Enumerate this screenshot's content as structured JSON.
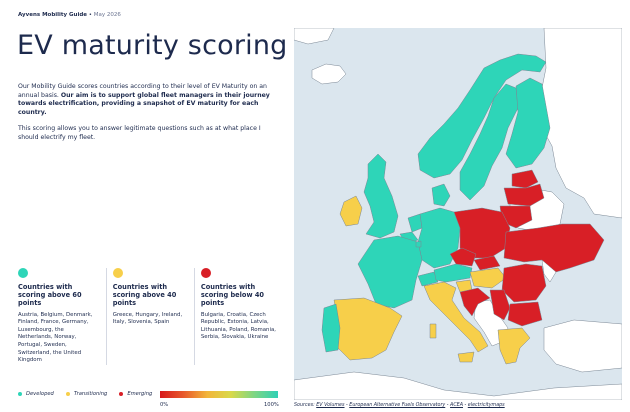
{
  "header": {
    "brand": "Ayvens Mobility Guide",
    "separator": " • ",
    "date": "May 2026"
  },
  "title": "EV maturity scoring",
  "intro": {
    "text_plain": "Our Mobility Guide scores countries according to their level of EV Maturity on an annual basis. ",
    "text_bold": "Our aim is to support global fleet managers in their journey towards electrification, providing a snapshot of EV maturity for each country.",
    "paragraph2": "This scoring allows you to answer legitimate questions such as at what place I should electrify my fleet."
  },
  "categories": [
    {
      "color": "#2ed5b8",
      "heading": "Countries with scoring above 60 points",
      "countries": "Austria, Belgium, Denmark, Finland, France, Germany, Luxembourg, the Netherlands, Norway, Portugal, Sweden, Switzerland, the United Kingdom"
    },
    {
      "color": "#f7cf4a",
      "heading": "Countries with scoring above 40 points",
      "countries": "Greece, Hungary, Ireland, Italy, Slovenia, Spain"
    },
    {
      "color": "#d81f26",
      "heading": "Countries with scoring below 40 points",
      "countries": "Bulgaria, Croatia, Czech Republic, Estonia, Latvia, Lithuania, Poland, Romania, Serbia, Slovakia, Ukraine"
    }
  ],
  "legend": {
    "items": [
      {
        "label": "Developed",
        "color": "#2ed5b8"
      },
      {
        "label": "Transitioning",
        "color": "#f7cf4a"
      },
      {
        "label": "Emerging",
        "color": "#d81f26"
      }
    ],
    "scale_min": "0%",
    "scale_max": "100%"
  },
  "map": {
    "colors": {
      "water": "#dbe6ee",
      "developed": "#2ed5b8",
      "transitioning": "#f7cf4a",
      "emerging": "#d81f26",
      "unscored": "#ffffff",
      "border": "#7b8794"
    }
  },
  "sources": {
    "prefix": "Sources: ",
    "s1": "EV Volumes",
    "s2": "European Alternative Fuels Observatory",
    "s3": "ACEA",
    "s4": "electricitymaps",
    "sep": " - "
  }
}
